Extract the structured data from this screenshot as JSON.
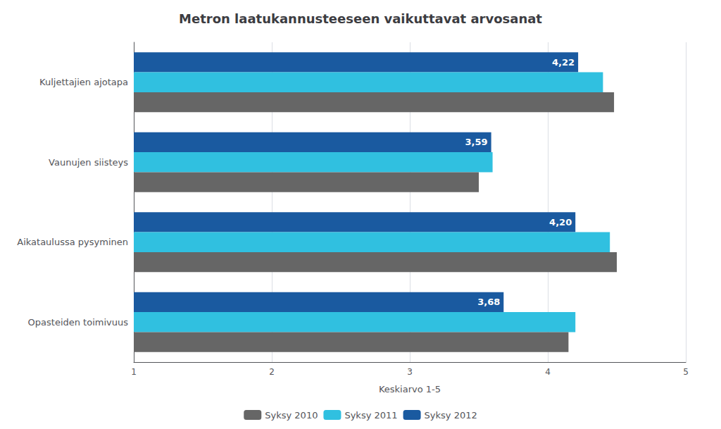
{
  "chart_data": {
    "type": "bar",
    "orientation": "horizontal",
    "title": "Metron laatukannusteeseen vaikuttavat arvosanat",
    "categories": [
      "Opasteiden toimivuus",
      "Aikataulussa pysyminen",
      "Vaunujen siisteys",
      "Kuljettajien ajotapa"
    ],
    "series": [
      {
        "name": "Syksy 2010",
        "color": "#666666",
        "values": [
          4.15,
          4.5,
          3.5,
          4.48
        ]
      },
      {
        "name": "Syksy 2011",
        "color": "#30C0E0",
        "values": [
          4.2,
          4.45,
          3.6,
          4.4
        ]
      },
      {
        "name": "Syksy 2012",
        "color": "#1A5AA0",
        "values": [
          3.68,
          4.2,
          3.59,
          4.22
        ],
        "value_labels": [
          "3,68",
          "4,20",
          "3,59",
          "4,22"
        ]
      }
    ],
    "xlabel": "Keskiarvo 1-5",
    "xlim": [
      1,
      5
    ],
    "xticks": [
      1,
      2,
      3,
      4,
      5
    ],
    "grid": true,
    "legend": "bottom"
  }
}
